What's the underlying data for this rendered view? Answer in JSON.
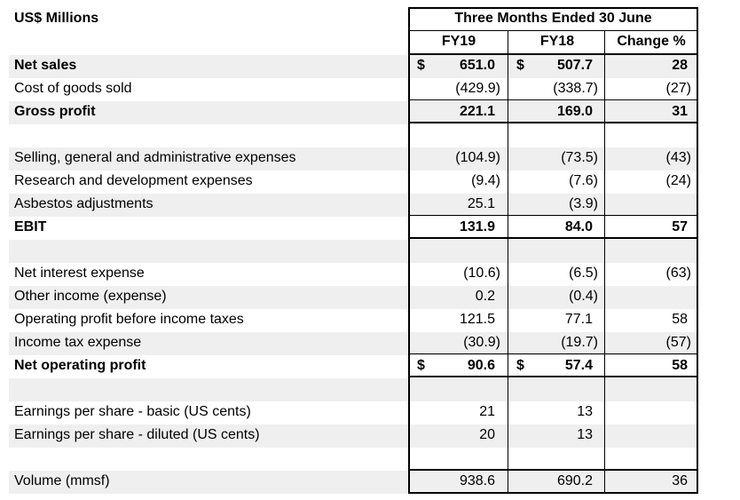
{
  "header": {
    "units": "US$ Millions",
    "period": "Three Months Ended 30 June",
    "col1": "FY19",
    "col2": "FY18",
    "col3": "Change %"
  },
  "rows": [
    {
      "label": "Net sales",
      "bold": true,
      "shade": true,
      "cur1": "$",
      "v1": "651.0",
      "cur2": "$",
      "v2": "507.7",
      "v3": "28"
    },
    {
      "label": "Cost of goods sold",
      "bold": false,
      "shade": false,
      "v1": "(429.9)",
      "v2": "(338.7)",
      "v3": "(27)"
    },
    {
      "label": "Gross profit",
      "bold": true,
      "shade": true,
      "v1": "221.1",
      "v2": "169.0",
      "v3": "31"
    },
    {
      "label": "",
      "bold": false,
      "shade": false
    },
    {
      "label": "Selling, general and administrative expenses",
      "bold": false,
      "shade": true,
      "v1": "(104.9)",
      "v2": "(73.5)",
      "v3": "(43)"
    },
    {
      "label": "Research and development expenses",
      "bold": false,
      "shade": false,
      "v1": "(9.4)",
      "v2": "(7.6)",
      "v3": "(24)"
    },
    {
      "label": "Asbestos adjustments",
      "bold": false,
      "shade": true,
      "v1": "25.1",
      "v2": "(3.9)",
      "v3": ""
    },
    {
      "label": "EBIT",
      "bold": true,
      "shade": false,
      "v1": "131.9",
      "v2": "84.0",
      "v3": "57"
    },
    {
      "label": "",
      "bold": false,
      "shade": true
    },
    {
      "label": "Net interest expense",
      "bold": false,
      "shade": false,
      "v1": "(10.6)",
      "v2": "(6.5)",
      "v3": "(63)"
    },
    {
      "label": "Other income (expense)",
      "bold": false,
      "shade": true,
      "v1": "0.2",
      "v2": "(0.4)",
      "v3": ""
    },
    {
      "label": "Operating profit before income taxes",
      "bold": false,
      "shade": false,
      "v1": "121.5",
      "v2": "77.1",
      "v3": "58"
    },
    {
      "label": "Income tax expense",
      "bold": false,
      "shade": true,
      "v1": "(30.9)",
      "v2": "(19.7)",
      "v3": "(57)"
    },
    {
      "label": "Net operating profit",
      "bold": true,
      "shade": false,
      "cur1": "$",
      "v1": "90.6",
      "cur2": "$",
      "v2": "57.4",
      "v3": "58"
    },
    {
      "label": "",
      "bold": false,
      "shade": true
    },
    {
      "label": "Earnings per share - basic (US cents)",
      "bold": false,
      "shade": false,
      "v1": "21",
      "v2": "13",
      "v3": ""
    },
    {
      "label": "Earnings per share - diluted (US cents)",
      "bold": false,
      "shade": true,
      "v1": "20",
      "v2": "13",
      "v3": ""
    },
    {
      "label": "",
      "bold": false,
      "shade": false
    },
    {
      "label": "Volume (mmsf)",
      "bold": false,
      "shade": true,
      "v1": "938.6",
      "v2": "690.2",
      "v3": "36"
    }
  ]
}
